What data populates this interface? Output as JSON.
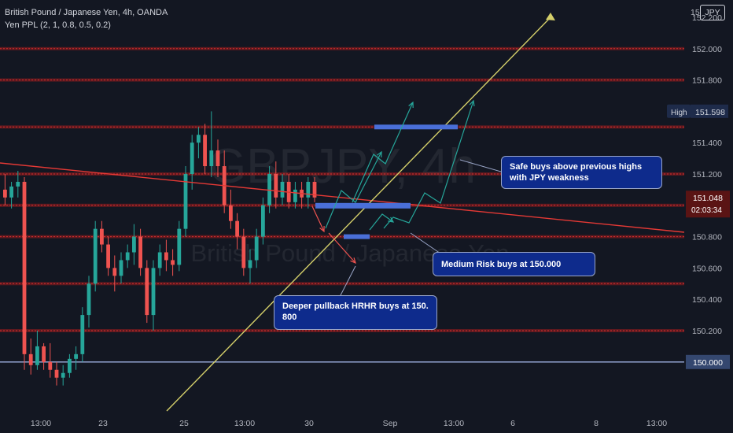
{
  "header": {
    "symbol_line": "British Pound / Japanese Yen, 4h, OANDA",
    "indicator_line": "Yen PPL (2, 1, 0.8, 0.5, 0.2)"
  },
  "currency_badge": "JPY",
  "watermark": {
    "symbol": "GBPJPY, 4h",
    "name": "British Pound / Japanese Yen"
  },
  "price_axis": {
    "ticks": [
      "152.200",
      "152.000",
      "151.800",
      "151.600",
      "151.400",
      "151.200",
      "151.000",
      "150.800",
      "150.600",
      "150.400",
      "150.200"
    ],
    "top_partial": "15",
    "labels": {
      "high_tag": "High",
      "high_value": "151.598",
      "last_price": "151.048",
      "countdown": "02:03:34",
      "level": "150.000"
    }
  },
  "time_axis": [
    "13:00",
    "23",
    "25",
    "13:00",
    "30",
    "Sep",
    "13:00",
    "6",
    "8",
    "13:00"
  ],
  "annotations": {
    "safe": "Safe buys above previous highs with JPY weakness",
    "medium": "Medium Risk buys at 150.000",
    "deep": "Deeper pullback HRHR buys at 150. 800"
  },
  "chart_data": {
    "type": "candlestick",
    "symbol": "GBPJPY",
    "timeframe": "4h",
    "broker": "OANDA",
    "ylim": [
      149.9,
      152.35
    ],
    "yticks": [
      150.2,
      150.4,
      150.6,
      150.8,
      151.0,
      151.2,
      151.4,
      151.6,
      151.8,
      152.0,
      152.2
    ],
    "horizontal_levels": [
      150.2,
      150.5,
      150.8,
      151.0,
      151.2,
      151.5,
      151.8,
      152.0
    ],
    "blue_level": 150.0,
    "high": 151.598,
    "last_price": 151.048,
    "colors": {
      "up": "#26a69a",
      "down": "#ef5350",
      "level": "#b71c1c",
      "trend": "#d4cf6a",
      "blue": "#4a6fd8"
    },
    "candles": [
      [
        151.1,
        151.2,
        151.0,
        151.05
      ],
      [
        151.05,
        151.15,
        150.98,
        151.12
      ],
      [
        151.12,
        151.22,
        151.05,
        151.15
      ],
      [
        151.15,
        151.18,
        149.95,
        150.05
      ],
      [
        150.05,
        150.15,
        149.92,
        149.98
      ],
      [
        149.98,
        150.2,
        149.95,
        150.1
      ],
      [
        150.1,
        150.12,
        149.95,
        150.0
      ],
      [
        150.0,
        150.12,
        149.9,
        149.95
      ],
      [
        149.95,
        150.0,
        149.85,
        149.9
      ],
      [
        149.9,
        149.98,
        149.85,
        149.93
      ],
      [
        149.93,
        150.05,
        149.9,
        150.02
      ],
      [
        150.02,
        150.1,
        149.95,
        150.05
      ],
      [
        150.05,
        150.35,
        150.0,
        150.3
      ],
      [
        150.3,
        150.55,
        150.22,
        150.5
      ],
      [
        150.5,
        150.9,
        150.45,
        150.85
      ],
      [
        150.85,
        150.9,
        150.7,
        150.75
      ],
      [
        150.75,
        150.8,
        150.55,
        150.6
      ],
      [
        150.6,
        150.68,
        150.45,
        150.55
      ],
      [
        150.55,
        150.7,
        150.5,
        150.65
      ],
      [
        150.65,
        150.75,
        150.6,
        150.7
      ],
      [
        150.7,
        150.88,
        150.62,
        150.8
      ],
      [
        150.8,
        150.85,
        150.55,
        150.6
      ],
      [
        150.6,
        150.65,
        150.25,
        150.3
      ],
      [
        150.3,
        150.65,
        150.2,
        150.6
      ],
      [
        150.6,
        150.75,
        150.55,
        150.7
      ],
      [
        150.7,
        150.78,
        150.58,
        150.65
      ],
      [
        150.65,
        150.72,
        150.55,
        150.62
      ],
      [
        150.62,
        150.9,
        150.58,
        150.85
      ],
      [
        150.85,
        151.25,
        150.8,
        151.2
      ],
      [
        151.2,
        151.45,
        151.1,
        151.4
      ],
      [
        151.4,
        151.5,
        151.3,
        151.45
      ],
      [
        151.45,
        151.52,
        151.2,
        151.25
      ],
      [
        151.25,
        151.6,
        151.18,
        151.35
      ],
      [
        151.35,
        151.42,
        151.18,
        151.25
      ],
      [
        151.25,
        151.35,
        150.95,
        151.0
      ],
      [
        151.0,
        151.1,
        150.85,
        150.9
      ],
      [
        150.9,
        150.95,
        150.72,
        150.8
      ],
      [
        150.8,
        150.85,
        150.55,
        150.6
      ],
      [
        150.6,
        150.72,
        150.5,
        150.65
      ],
      [
        150.65,
        150.85,
        150.6,
        150.8
      ],
      [
        150.8,
        151.05,
        150.75,
        151.0
      ],
      [
        151.0,
        151.25,
        150.95,
        151.2
      ],
      [
        151.2,
        151.28,
        150.98,
        151.05
      ],
      [
        151.05,
        151.2,
        151.0,
        151.15
      ],
      [
        151.15,
        151.2,
        150.98,
        151.02
      ],
      [
        151.02,
        151.15,
        150.98,
        151.1
      ],
      [
        151.1,
        151.15,
        150.98,
        151.05
      ],
      [
        151.05,
        151.18,
        150.98,
        151.15
      ],
      [
        151.15,
        151.18,
        151.02,
        151.05
      ]
    ]
  }
}
